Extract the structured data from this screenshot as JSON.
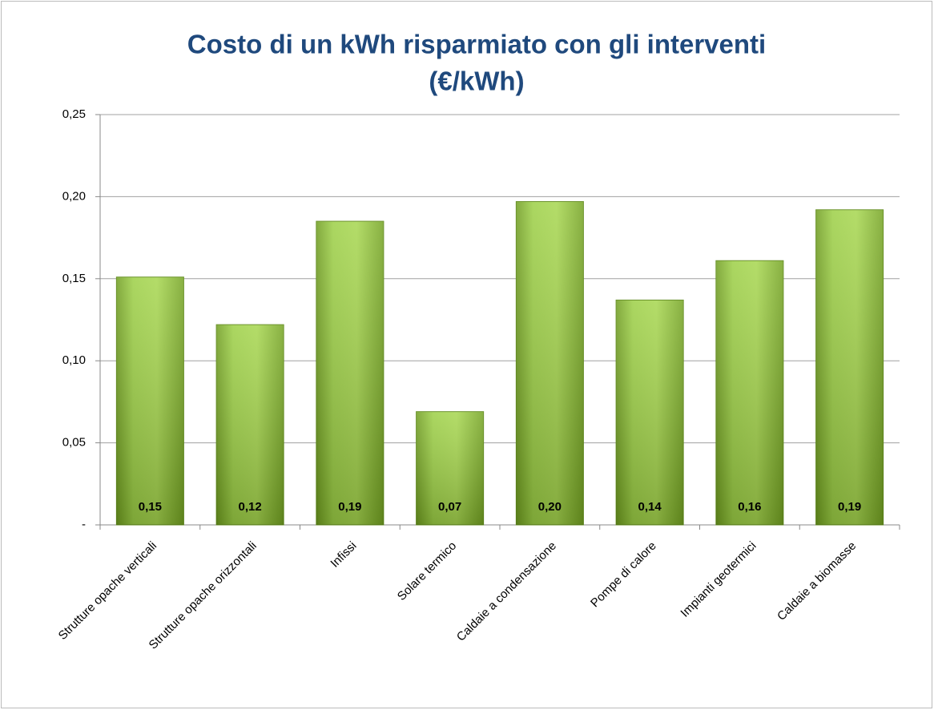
{
  "chart_data": {
    "type": "bar",
    "title": [
      "Costo di un kWh risparmiato con gli interventi",
      "(€/kWh)"
    ],
    "categories": [
      "Strutture opache verticali",
      "Strutture opache orizzontali",
      "Infissi",
      "Solare termico",
      "Caldaie a condensazione",
      "Pompe di calore",
      "Impianti geotermici",
      "Caldaie a biomasse"
    ],
    "values": [
      0.151,
      0.122,
      0.185,
      0.069,
      0.197,
      0.137,
      0.161,
      0.192
    ],
    "value_labels": [
      "0,15",
      "0,12",
      "0,19",
      "0,07",
      "0,20",
      "0,14",
      "0,16",
      "0,19"
    ],
    "color": "#8dc63f",
    "ylim": [
      0,
      0.25
    ],
    "yticks": [
      {
        "value": 0,
        "label": "-"
      },
      {
        "value": 0.05,
        "label": "0,05"
      },
      {
        "value": 0.1,
        "label": "0,10"
      },
      {
        "value": 0.15,
        "label": "0,15"
      },
      {
        "value": 0.2,
        "label": "0,20"
      },
      {
        "value": 0.25,
        "label": "0,25"
      }
    ],
    "grid": true
  }
}
